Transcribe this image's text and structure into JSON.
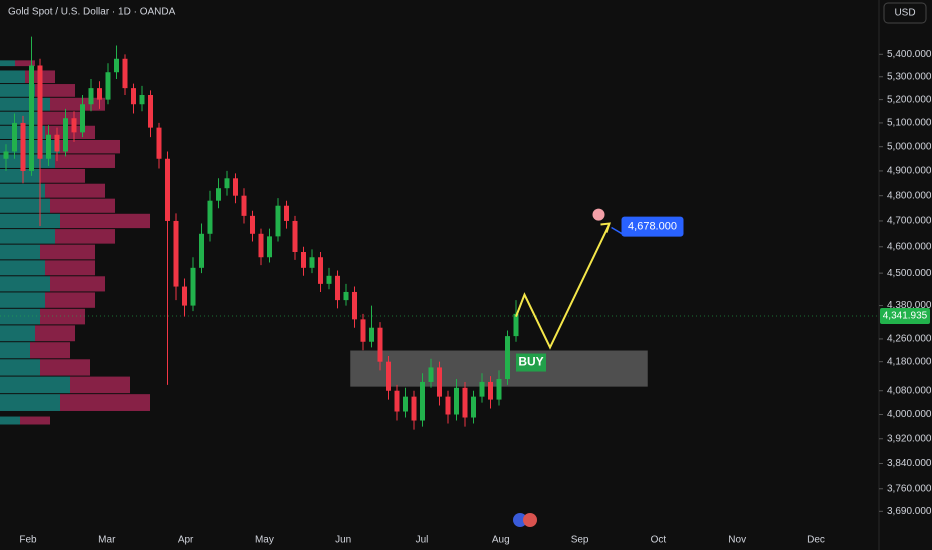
{
  "header": {
    "symbol": "Gold Spot / U.S. Dollar · 1D · OANDA",
    "currency": "USD"
  },
  "chart_data": {
    "type": "candlestick",
    "log_scale": true,
    "ylim": [
      3630,
      5650
    ],
    "yticks": [
      {
        "value": 5400,
        "label": "5,400.000"
      },
      {
        "value": 5300,
        "label": "5,300.000"
      },
      {
        "value": 5200,
        "label": "5,200.000"
      },
      {
        "value": 5100,
        "label": "5,100.000"
      },
      {
        "value": 5000,
        "label": "5,000.000"
      },
      {
        "value": 4900,
        "label": "4,900.000"
      },
      {
        "value": 4800,
        "label": "4,800.000"
      },
      {
        "value": 4700,
        "label": "4,700.000"
      },
      {
        "value": 4600,
        "label": "4,600.000"
      },
      {
        "value": 4500,
        "label": "4,500.000"
      },
      {
        "value": 4380,
        "label": "4,380.000"
      },
      {
        "value": 4260,
        "label": "4,260.000"
      },
      {
        "value": 4180,
        "label": "4,180.000"
      },
      {
        "value": 4080,
        "label": "4,080.000"
      },
      {
        "value": 4000,
        "label": "4,000.000"
      },
      {
        "value": 3920,
        "label": "3,920.000"
      },
      {
        "value": 3840,
        "label": "3,840.000"
      },
      {
        "value": 3760,
        "label": "3,760.000"
      },
      {
        "value": 3690,
        "label": "3,690.000"
      }
    ],
    "months": [
      "Feb",
      "Mar",
      "Apr",
      "May",
      "Jun",
      "Jul",
      "Aug",
      "Sep",
      "Oct",
      "Nov",
      "Dec"
    ],
    "up_color": "#22b24c",
    "down_color": "#f23645",
    "candles": [
      [
        4950,
        5010,
        4900,
        4980
      ],
      [
        4980,
        5140,
        4950,
        5100
      ],
      [
        5100,
        5130,
        4850,
        4900
      ],
      [
        4900,
        5480,
        4880,
        5350
      ],
      [
        5350,
        5380,
        4680,
        4950
      ],
      [
        4950,
        5090,
        4920,
        5050
      ],
      [
        5050,
        5080,
        4940,
        4980
      ],
      [
        4980,
        5160,
        4960,
        5120
      ],
      [
        5120,
        5150,
        5020,
        5060
      ],
      [
        5060,
        5220,
        5040,
        5180
      ],
      [
        5180,
        5290,
        5150,
        5250
      ],
      [
        5250,
        5280,
        5160,
        5200
      ],
      [
        5200,
        5360,
        5180,
        5320
      ],
      [
        5320,
        5440,
        5290,
        5380
      ],
      [
        5380,
        5400,
        5220,
        5250
      ],
      [
        5250,
        5270,
        5140,
        5180
      ],
      [
        5180,
        5260,
        5150,
        5220
      ],
      [
        5220,
        5240,
        5040,
        5080
      ],
      [
        5080,
        5100,
        4910,
        4950
      ],
      [
        4950,
        4980,
        4100,
        4700
      ],
      [
        4700,
        4730,
        4400,
        4450
      ],
      [
        4450,
        4480,
        4340,
        4380
      ],
      [
        4380,
        4560,
        4360,
        4520
      ],
      [
        4520,
        4690,
        4500,
        4650
      ],
      [
        4650,
        4820,
        4620,
        4780
      ],
      [
        4780,
        4870,
        4750,
        4830
      ],
      [
        4830,
        4900,
        4800,
        4870
      ],
      [
        4870,
        4890,
        4770,
        4800
      ],
      [
        4800,
        4830,
        4690,
        4720
      ],
      [
        4720,
        4740,
        4620,
        4650
      ],
      [
        4650,
        4670,
        4530,
        4560
      ],
      [
        4560,
        4670,
        4540,
        4640
      ],
      [
        4640,
        4790,
        4620,
        4760
      ],
      [
        4760,
        4780,
        4670,
        4700
      ],
      [
        4700,
        4720,
        4550,
        4580
      ],
      [
        4580,
        4600,
        4490,
        4520
      ],
      [
        4520,
        4590,
        4500,
        4560
      ],
      [
        4560,
        4580,
        4430,
        4460
      ],
      [
        4460,
        4520,
        4440,
        4490
      ],
      [
        4490,
        4510,
        4370,
        4400
      ],
      [
        4400,
        4460,
        4380,
        4430
      ],
      [
        4430,
        4450,
        4300,
        4330
      ],
      [
        4330,
        4350,
        4220,
        4250
      ],
      [
        4250,
        4380,
        4230,
        4300
      ],
      [
        4300,
        4320,
        4150,
        4180
      ],
      [
        4180,
        4200,
        4050,
        4080
      ],
      [
        4080,
        4100,
        3980,
        4010
      ],
      [
        4010,
        4090,
        3990,
        4060
      ],
      [
        4060,
        4080,
        3950,
        3980
      ],
      [
        3980,
        4140,
        3960,
        4110
      ],
      [
        4110,
        4190,
        4090,
        4160
      ],
      [
        4160,
        4180,
        4030,
        4060
      ],
      [
        4060,
        4080,
        3970,
        4000
      ],
      [
        4000,
        4120,
        3980,
        4090
      ],
      [
        4090,
        4110,
        3960,
        3990
      ],
      [
        3990,
        4080,
        3970,
        4060
      ],
      [
        4060,
        4140,
        4040,
        4110
      ],
      [
        4110,
        4130,
        4020,
        4050
      ],
      [
        4050,
        4150,
        4030,
        4120
      ],
      [
        4120,
        4290,
        4100,
        4270
      ],
      [
        4270,
        4400,
        4250,
        4350
      ]
    ],
    "volume_profile": {
      "prices": [
        3980,
        4040,
        4100,
        4160,
        4220,
        4280,
        4340,
        4400,
        4460,
        4520,
        4580,
        4640,
        4700,
        4760,
        4820,
        4880,
        4940,
        5000,
        5060,
        5120,
        5180,
        5240,
        5300,
        5360
      ],
      "up": [
        20,
        60,
        70,
        40,
        30,
        35,
        40,
        45,
        50,
        45,
        40,
        55,
        60,
        50,
        45,
        40,
        55,
        60,
        45,
        40,
        50,
        35,
        25,
        15
      ],
      "down": [
        30,
        90,
        60,
        50,
        40,
        40,
        45,
        50,
        55,
        50,
        55,
        60,
        90,
        65,
        60,
        45,
        60,
        60,
        50,
        45,
        55,
        40,
        30,
        20
      ],
      "up_color": "#1b8f8a",
      "down_color": "#b0285a"
    },
    "zone": {
      "x": [
        40.5,
        75.5
      ],
      "values": [
        4094,
        4219
      ],
      "label": "BUY"
    },
    "projection": {
      "x": [
        60,
        61,
        64,
        71
      ],
      "values": [
        4340,
        4420,
        4230,
        4690
      ],
      "color": "#f5e74a"
    },
    "current_price": {
      "value": 4341.935,
      "label": "4,341.935"
    },
    "target": {
      "value": 4678,
      "label": "4,678.000"
    }
  }
}
